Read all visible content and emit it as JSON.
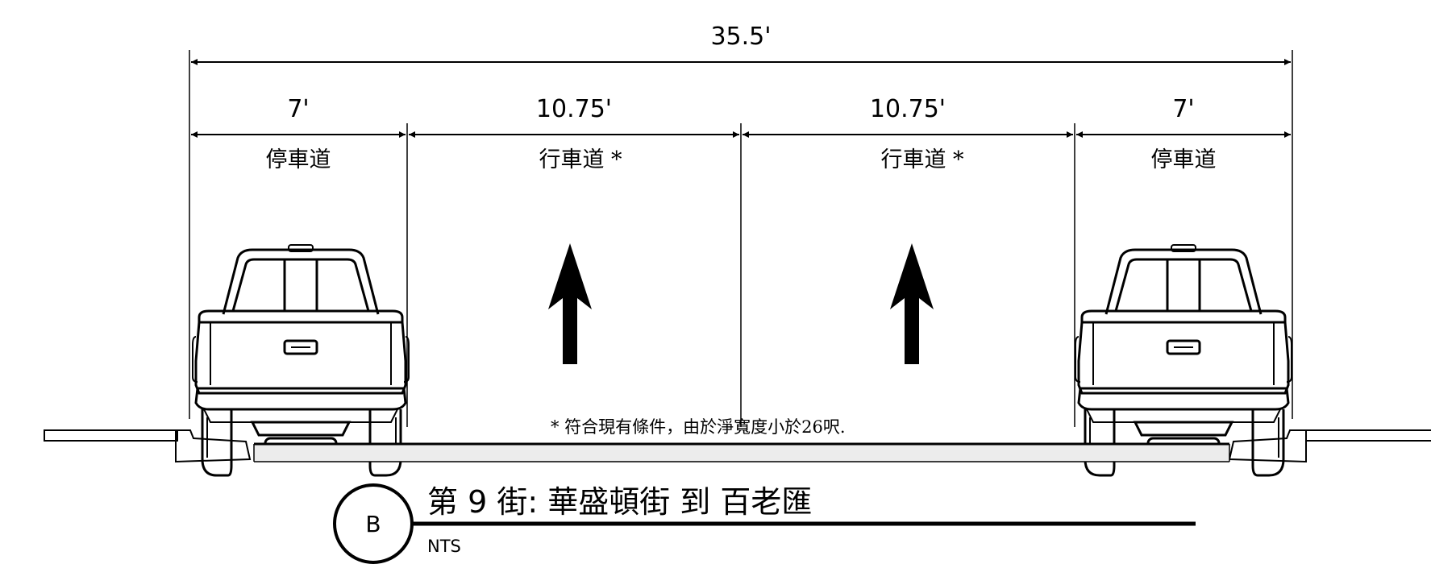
{
  "dimensions": {
    "overall": "35.5'",
    "parking_left": "7'",
    "travel_left": "10.75'",
    "travel_right": "10.75'",
    "parking_right": "7'"
  },
  "lanes": {
    "parking_left": "停車道",
    "travel_left": "行車道 *",
    "travel_right": "行車道 *",
    "parking_right": "停車道"
  },
  "note": "* 符合現有條件，由於淨寬度小於26呎.",
  "section": {
    "letter": "B",
    "title": "第 9 街: 華盛頓街 到 百老匯",
    "scale": "NTS"
  }
}
